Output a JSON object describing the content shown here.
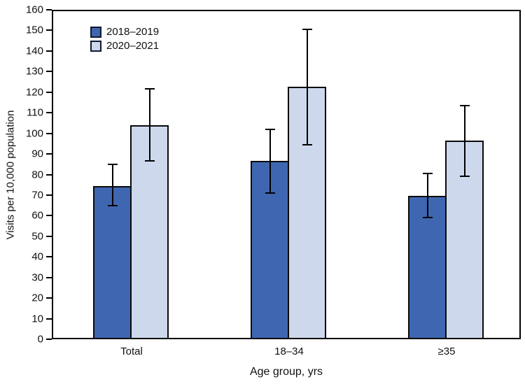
{
  "chart_data": {
    "type": "bar",
    "title": "",
    "xlabel": "Age group, yrs",
    "ylabel": "Visits per 10,000 population",
    "categories": [
      "Total",
      "18–34",
      "≥35"
    ],
    "series": [
      {
        "name": "2018–2019",
        "color": "#3F67B1",
        "border_color": "#0a0a0a",
        "values": [
          74.5,
          86.5,
          69.5
        ],
        "ci_low": [
          65,
          71,
          59
        ],
        "ci_high": [
          85,
          102,
          80.5
        ]
      },
      {
        "name": "2020–2021",
        "color": "#CED8ED",
        "border_color": "#0a0a0a",
        "values": [
          104,
          122.5,
          96.5
        ],
        "ci_low": [
          86.5,
          94.5,
          79
        ],
        "ci_high": [
          121.5,
          150.5,
          113.5
        ]
      }
    ],
    "ylim": [
      0,
      160
    ],
    "ytick_step": 10,
    "grid": false,
    "error_bars": true,
    "legend_position": "top-left-inside"
  }
}
